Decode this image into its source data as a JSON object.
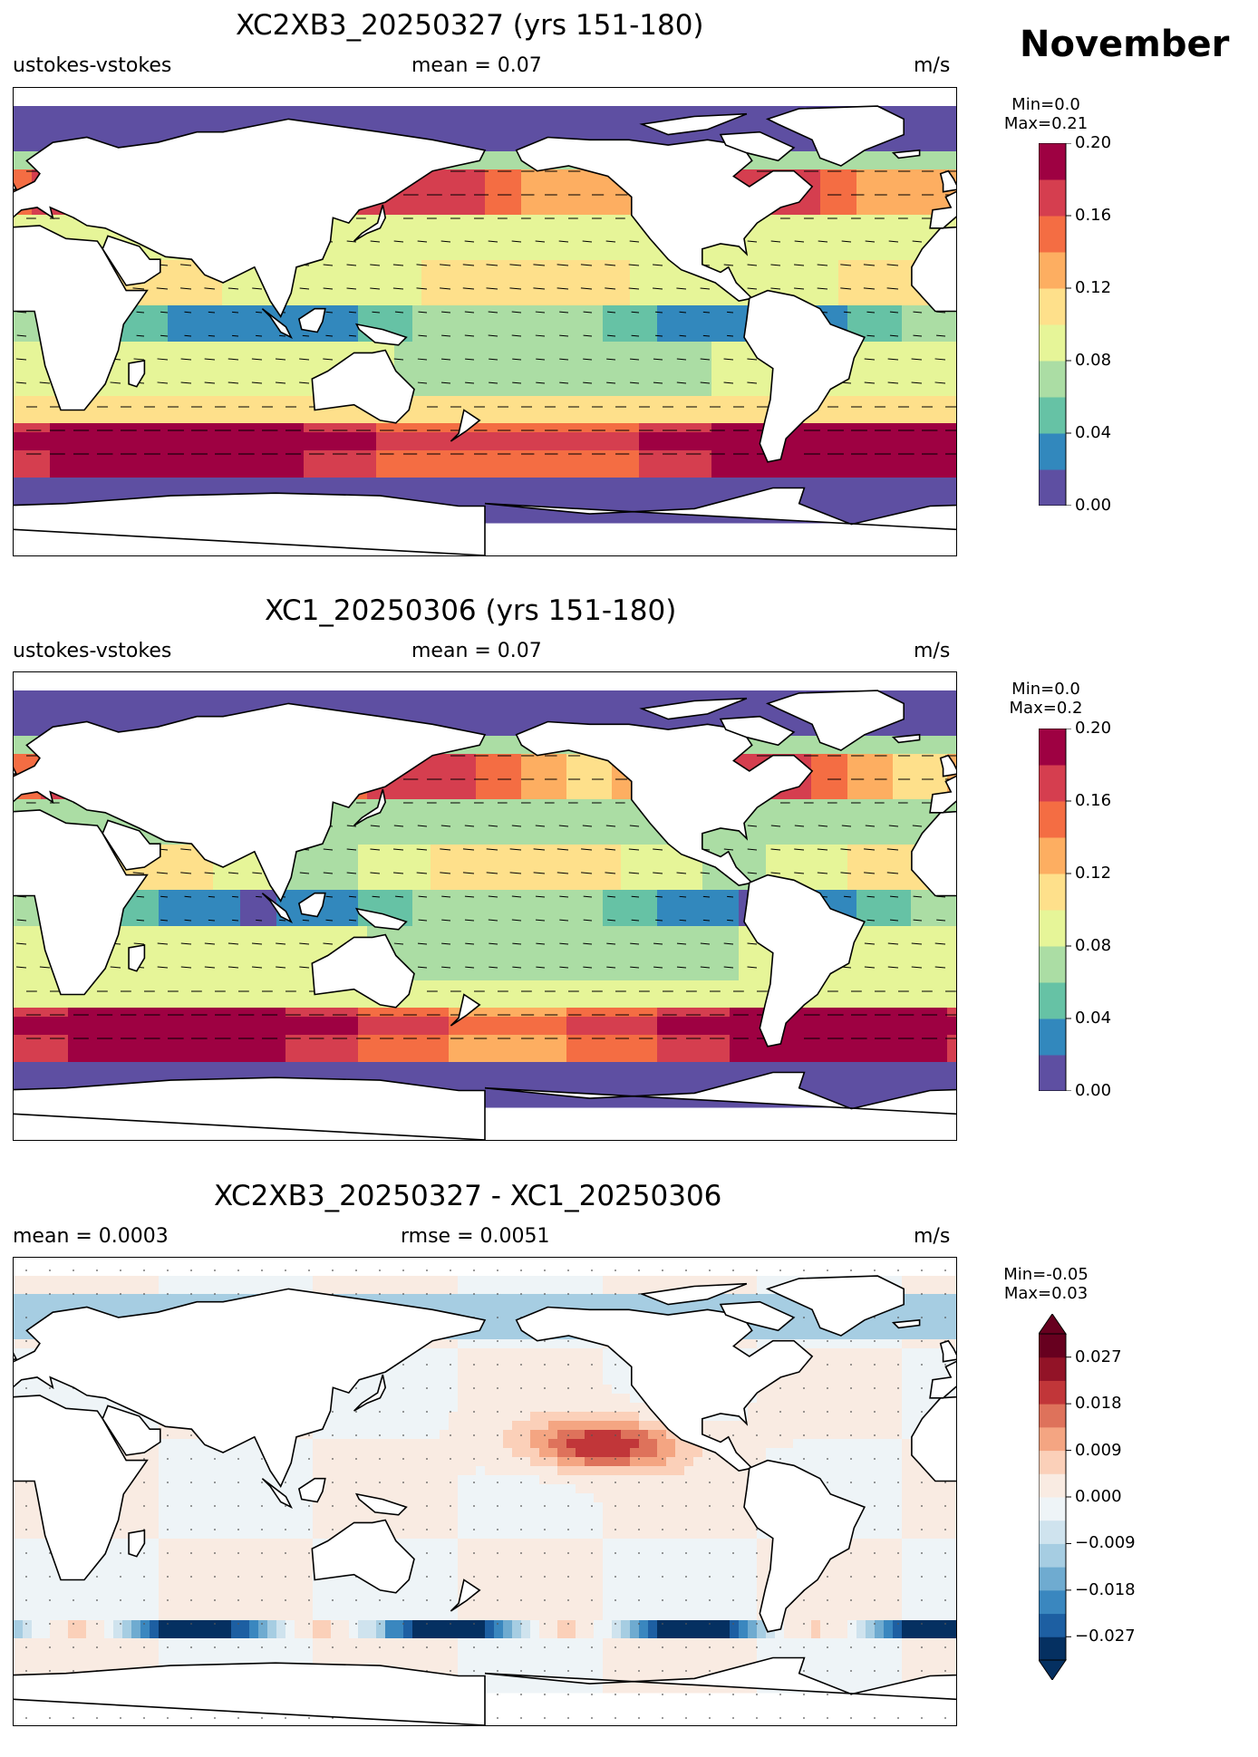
{
  "month": "November",
  "panels": [
    {
      "title": "XC2XB3_20250327 (yrs 151-180)",
      "left": "ustokes-vstokes",
      "center": "mean = 0.07",
      "right": "m/s",
      "minmax": [
        "Min=0.0",
        "Max=0.21"
      ],
      "field": "magnitude",
      "colorbar": {
        "levels": [
          0.0,
          0.02,
          0.04,
          0.06,
          0.08,
          0.1,
          0.12,
          0.14,
          0.16,
          0.18,
          0.2
        ],
        "ticks": [
          "0.00",
          "0.04",
          "0.08",
          "0.12",
          "0.16",
          "0.20"
        ],
        "colors": [
          "#5e4fa2",
          "#3288bd",
          "#66c2a5",
          "#abdda4",
          "#e6f598",
          "#fee08b",
          "#fdae61",
          "#f46d43",
          "#d53e4f",
          "#9e0142"
        ],
        "extend": false
      }
    },
    {
      "title": "XC1_20250306 (yrs 151-180)",
      "left": "ustokes-vstokes",
      "center": "mean = 0.07",
      "right": "m/s",
      "minmax": [
        "Min=0.0",
        "Max=0.2"
      ],
      "field": "magnitude",
      "colorbar": {
        "levels": [
          0.0,
          0.02,
          0.04,
          0.06,
          0.08,
          0.1,
          0.12,
          0.14,
          0.16,
          0.18,
          0.2
        ],
        "ticks": [
          "0.00",
          "0.04",
          "0.08",
          "0.12",
          "0.16",
          "0.20"
        ],
        "colors": [
          "#5e4fa2",
          "#3288bd",
          "#66c2a5",
          "#abdda4",
          "#e6f598",
          "#fee08b",
          "#fdae61",
          "#f46d43",
          "#d53e4f",
          "#9e0142"
        ],
        "extend": false
      }
    },
    {
      "title": "XC2XB3_20250327 - XC1_20250306",
      "left": "mean = 0.0003",
      "center": "rmse = 0.0051",
      "right": "m/s",
      "minmax": [
        "Min=-0.05",
        "Max=0.03"
      ],
      "field": "difference",
      "colorbar": {
        "ticks": [
          "0.027",
          "0.018",
          "0.009",
          "0.000",
          "−0.009",
          "−0.018",
          "−0.027"
        ],
        "colors": [
          "#053061",
          "#1d5fa2",
          "#3a87bf",
          "#6fabd0",
          "#a6cde2",
          "#cfe3ee",
          "#eef4f7",
          "#f9ebe2",
          "#fbd0b9",
          "#f4a582",
          "#de725b",
          "#c13639",
          "#921327",
          "#67001f"
        ],
        "extend": true
      }
    }
  ]
}
